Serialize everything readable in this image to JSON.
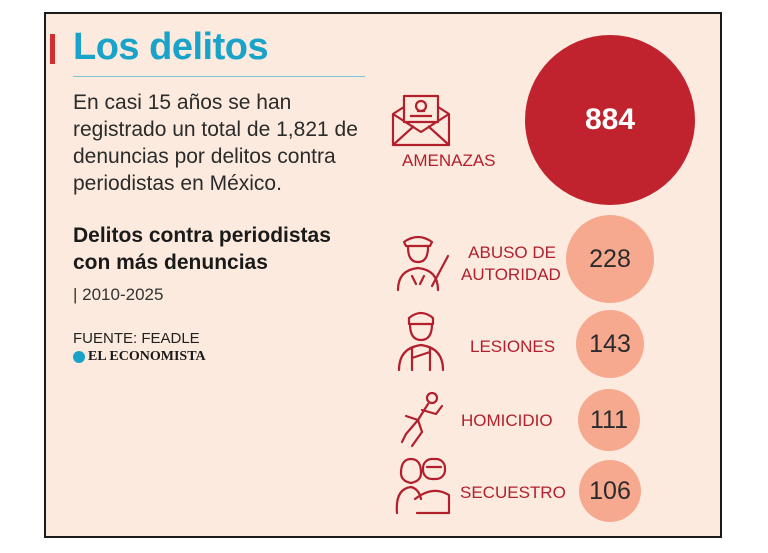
{
  "title": "Los delitos",
  "intro": "En casi 15 años se han registrado un total de 1,821 de denuncias por delitos contra periodistas en México.",
  "subheading": "Delitos contra periodistas con más denuncias",
  "years": "| 2010-2025",
  "source": "FUENTE: FEADLE",
  "brand": "EL ECONOMISTA",
  "colors": {
    "title": "#1aa3c9",
    "accent": "#c0222e",
    "bubble_small": "#f6a98f",
    "background": "#fbeadd"
  },
  "crimes": [
    {
      "label": "AMENAZAS",
      "value": "884",
      "icon": "envelope-skull-icon"
    },
    {
      "label_line1": "ABUSO DE",
      "label_line2": "AUTORIDAD",
      "value": "228",
      "icon": "police-officer-icon"
    },
    {
      "label": "LESIONES",
      "value": "143",
      "icon": "injured-person-icon"
    },
    {
      "label": "HOMICIDIO",
      "value": "111",
      "icon": "body-outline-icon"
    },
    {
      "label": "SECUESTRO",
      "value": "106",
      "icon": "kidnapper-icon"
    }
  ]
}
